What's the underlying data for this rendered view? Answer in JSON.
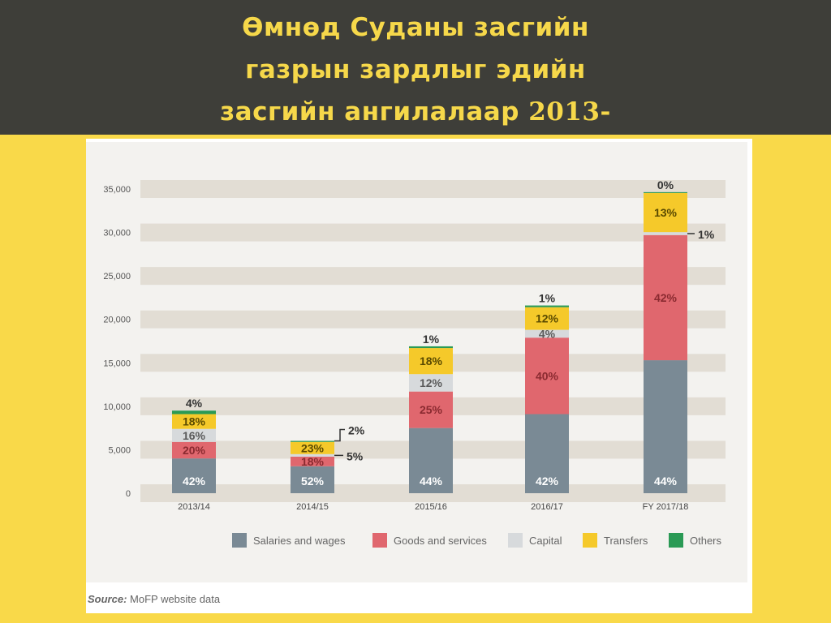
{
  "title": {
    "line1": "Өмнөд Суданы засгийн",
    "line2": "газрын зардлыг эдийн",
    "line3_text": "засгийн ангилалаар ",
    "line3_year": "2013-"
  },
  "source": {
    "label": "Source:",
    "text": " MoFP website data"
  },
  "colors": {
    "Salaries and wages": "#7a8a95",
    "Goods and services": "#e0676e",
    "Capital": "#d7dadc",
    "Transfers": "#f5c92a",
    "Others": "#2a9a55"
  },
  "chart_data": {
    "type": "bar",
    "stacked": true,
    "categories": [
      "2013/14",
      "2014/15",
      "2015/16",
      "2016/17",
      "FY 2017/18"
    ],
    "ylim": [
      0,
      35000
    ],
    "yticks": [
      "0",
      "5,000",
      "10,000",
      "15,000",
      "20,000",
      "25,000",
      "30,000",
      "35,000"
    ],
    "grid": "banded horizontal",
    "legend_position": "bottom",
    "series": [
      {
        "name": "Salaries and wages",
        "values": [
          4000,
          3100,
          7500,
          9100,
          15300
        ],
        "labels": [
          "42%",
          "52%",
          "44%",
          "42%",
          "44%"
        ]
      },
      {
        "name": "Goods and services",
        "values": [
          1900,
          1100,
          4200,
          8800,
          14400
        ],
        "labels": [
          "20%",
          "18%",
          "25%",
          "40%",
          "42%"
        ]
      },
      {
        "name": "Capital",
        "values": [
          1500,
          300,
          2000,
          900,
          340
        ],
        "labels": [
          "16%",
          "5%",
          "12%",
          "4%",
          "1%"
        ]
      },
      {
        "name": "Transfers",
        "values": [
          1700,
          1400,
          3000,
          2600,
          4500
        ],
        "labels": [
          "18%",
          "23%",
          "18%",
          "12%",
          "13%"
        ]
      },
      {
        "name": "Others",
        "values": [
          400,
          120,
          200,
          200,
          100
        ],
        "labels": [
          "4%",
          "2%",
          "1%",
          "1%",
          "0%"
        ]
      }
    ]
  }
}
